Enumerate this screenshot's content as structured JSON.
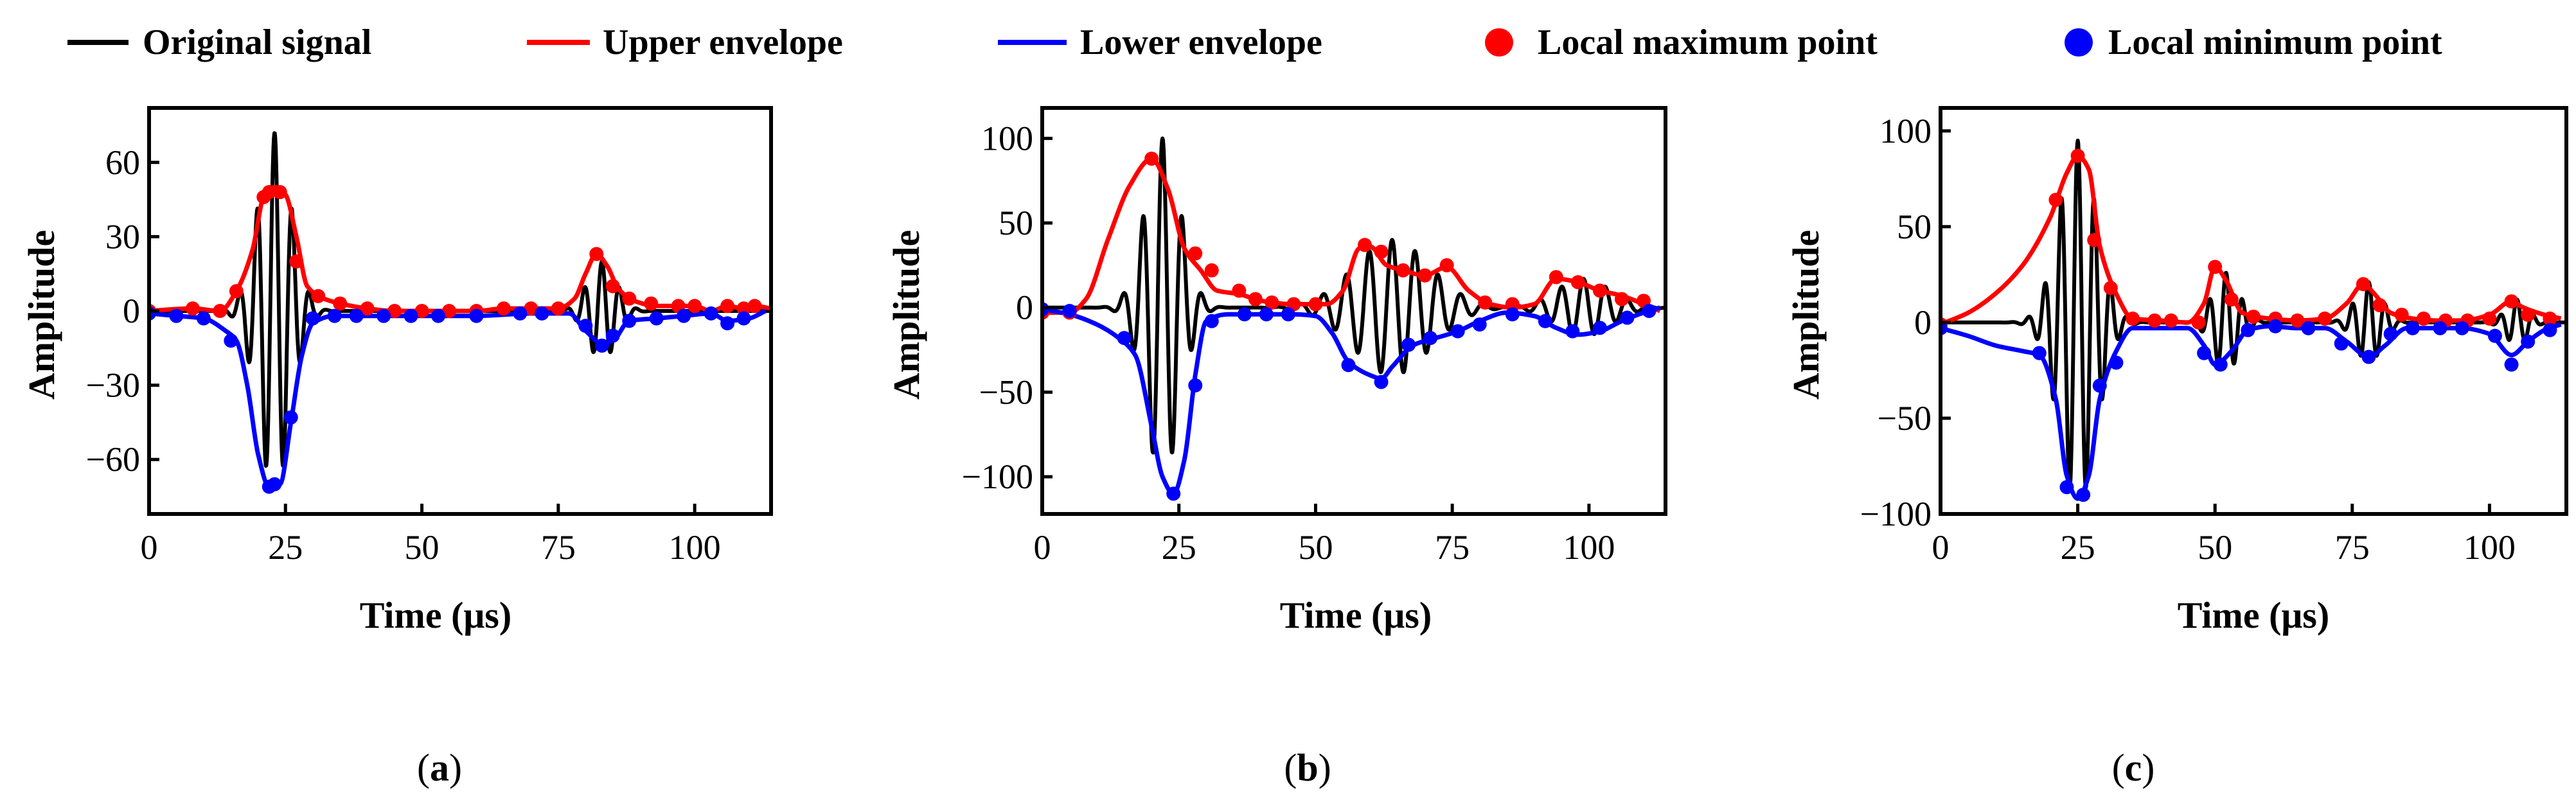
{
  "legend": {
    "original": "Original signal",
    "upper": "Upper envelope",
    "lower": "Lower envelope",
    "maxpt": "Local maximum point",
    "minpt": "Local minimum point"
  },
  "colors": {
    "signal": "#000000",
    "upper": "#ff0000",
    "lower": "#0000ff",
    "axis": "#000000"
  },
  "chart_data": [
    {
      "type": "line",
      "caption_open": "(",
      "caption_letter": "a",
      "caption_close": ")",
      "xlabel": "Time (μs)",
      "ylabel": "Amplitude",
      "xlim": [
        0,
        114
      ],
      "ylim": [
        -82,
        82
      ],
      "xticks": [
        0,
        25,
        50,
        75,
        100
      ],
      "yticks": [
        -60,
        -30,
        0,
        30,
        60
      ],
      "ytick_labels": [
        "−60",
        "−30",
        "0",
        "30",
        "60"
      ],
      "bursts": [
        {
          "center": 23,
          "amp": 72,
          "width": 3.0,
          "period": 3.2
        },
        {
          "center": 83,
          "amp": 20,
          "width": 2.6,
          "period": 3.2
        }
      ],
      "upper_envelope": [
        [
          0,
          0
        ],
        [
          8,
          1
        ],
        [
          13,
          0
        ],
        [
          16,
          8
        ],
        [
          19,
          25
        ],
        [
          21,
          46
        ],
        [
          23,
          50
        ],
        [
          25,
          47
        ],
        [
          27,
          30
        ],
        [
          29,
          10
        ],
        [
          32,
          5
        ],
        [
          35,
          3
        ],
        [
          40,
          1
        ],
        [
          45,
          0
        ],
        [
          50,
          0
        ],
        [
          55,
          0
        ],
        [
          60,
          0
        ],
        [
          65,
          1
        ],
        [
          70,
          1
        ],
        [
          75,
          1
        ],
        [
          78,
          5
        ],
        [
          80,
          15
        ],
        [
          82,
          23
        ],
        [
          84,
          18
        ],
        [
          86,
          9
        ],
        [
          89,
          4
        ],
        [
          93,
          2
        ],
        [
          97,
          2
        ],
        [
          100,
          2
        ],
        [
          103,
          0
        ],
        [
          106,
          2
        ],
        [
          109,
          1
        ],
        [
          111,
          2
        ],
        [
          114,
          1
        ]
      ],
      "lower_envelope": [
        [
          0,
          -1
        ],
        [
          5,
          -2
        ],
        [
          10,
          -3
        ],
        [
          14,
          -8
        ],
        [
          16,
          -12
        ],
        [
          18,
          -30
        ],
        [
          20,
          -58
        ],
        [
          22,
          -71
        ],
        [
          24,
          -70
        ],
        [
          26,
          -45
        ],
        [
          28,
          -18
        ],
        [
          30,
          -5
        ],
        [
          34,
          -2
        ],
        [
          40,
          -2
        ],
        [
          50,
          -2
        ],
        [
          60,
          -2
        ],
        [
          70,
          -1
        ],
        [
          77,
          -1
        ],
        [
          80,
          -8
        ],
        [
          83,
          -13
        ],
        [
          85,
          -12
        ],
        [
          88,
          -4
        ],
        [
          93,
          -3
        ],
        [
          98,
          -2
        ],
        [
          103,
          -1
        ],
        [
          106,
          -4
        ],
        [
          110,
          -3
        ],
        [
          113,
          0
        ]
      ],
      "max_points": [
        [
          0,
          0
        ],
        [
          8,
          1
        ],
        [
          13,
          0
        ],
        [
          16,
          8
        ],
        [
          21,
          46
        ],
        [
          22,
          48
        ],
        [
          24,
          48
        ],
        [
          27,
          20
        ],
        [
          31,
          6
        ],
        [
          35,
          3
        ],
        [
          40,
          1
        ],
        [
          45,
          0
        ],
        [
          50,
          0
        ],
        [
          55,
          0
        ],
        [
          60,
          0
        ],
        [
          65,
          1
        ],
        [
          70,
          1
        ],
        [
          75,
          1
        ],
        [
          82,
          23
        ],
        [
          85,
          10
        ],
        [
          88,
          5
        ],
        [
          92,
          3
        ],
        [
          97,
          2
        ],
        [
          100,
          2
        ],
        [
          106,
          2
        ],
        [
          109,
          1
        ],
        [
          111,
          2
        ]
      ],
      "min_points": [
        [
          0,
          -1
        ],
        [
          5,
          -2
        ],
        [
          10,
          -3
        ],
        [
          15,
          -12
        ],
        [
          22,
          -71
        ],
        [
          23,
          -70
        ],
        [
          26,
          -43
        ],
        [
          30,
          -3
        ],
        [
          34,
          -2
        ],
        [
          38,
          -2
        ],
        [
          43,
          -2
        ],
        [
          48,
          -2
        ],
        [
          53,
          -2
        ],
        [
          60,
          -2
        ],
        [
          68,
          -1
        ],
        [
          72,
          -1
        ],
        [
          80,
          -6
        ],
        [
          83,
          -14
        ],
        [
          85,
          -10
        ],
        [
          88,
          -4
        ],
        [
          93,
          -3
        ],
        [
          98,
          -2
        ],
        [
          103,
          -1
        ],
        [
          106,
          -5
        ],
        [
          109,
          -3
        ]
      ]
    },
    {
      "type": "line",
      "caption_open": "(",
      "caption_letter": "b",
      "caption_close": ")",
      "xlabel": "Time (μs)",
      "ylabel": "Amplitude",
      "xlim": [
        0,
        114
      ],
      "ylim": [
        -122,
        118
      ],
      "xticks": [
        0,
        25,
        50,
        75,
        100
      ],
      "yticks": [
        -100,
        -50,
        0,
        50,
        100
      ],
      "ytick_labels": [
        "−100",
        "−50",
        "0",
        "50",
        "100"
      ],
      "bursts": [
        {
          "center": 22,
          "amp": 100,
          "width": 3.2,
          "period": 3.6
        },
        {
          "center": 64,
          "amp": 40,
          "width": 7.0,
          "period": 4.2
        },
        {
          "center": 99,
          "amp": 17,
          "width": 5.0,
          "period": 4.0
        }
      ],
      "upper_envelope": [
        [
          0,
          -3
        ],
        [
          5,
          -3
        ],
        [
          8,
          5
        ],
        [
          12,
          40
        ],
        [
          16,
          72
        ],
        [
          20,
          88
        ],
        [
          23,
          70
        ],
        [
          26,
          35
        ],
        [
          29,
          22
        ],
        [
          32,
          10
        ],
        [
          36,
          8
        ],
        [
          40,
          4
        ],
        [
          46,
          2
        ],
        [
          52,
          2
        ],
        [
          55,
          10
        ],
        [
          58,
          35
        ],
        [
          60,
          36
        ],
        [
          63,
          25
        ],
        [
          66,
          22
        ],
        [
          70,
          19
        ],
        [
          74,
          24
        ],
        [
          78,
          10
        ],
        [
          82,
          2
        ],
        [
          86,
          0
        ],
        [
          90,
          2
        ],
        [
          94,
          17
        ],
        [
          98,
          15
        ],
        [
          102,
          10
        ],
        [
          106,
          7
        ],
        [
          110,
          2
        ],
        [
          113,
          -2
        ]
      ],
      "lower_envelope": [
        [
          0,
          -1
        ],
        [
          5,
          -4
        ],
        [
          10,
          -10
        ],
        [
          14,
          -18
        ],
        [
          17,
          -28
        ],
        [
          20,
          -70
        ],
        [
          22,
          -100
        ],
        [
          24,
          -110
        ],
        [
          26,
          -90
        ],
        [
          28,
          -40
        ],
        [
          30,
          -8
        ],
        [
          34,
          -4
        ],
        [
          40,
          -4
        ],
        [
          46,
          -4
        ],
        [
          50,
          -5
        ],
        [
          53,
          -15
        ],
        [
          56,
          -32
        ],
        [
          60,
          -40
        ],
        [
          62,
          -42
        ],
        [
          64,
          -35
        ],
        [
          68,
          -22
        ],
        [
          72,
          -18
        ],
        [
          76,
          -14
        ],
        [
          80,
          -8
        ],
        [
          85,
          -3
        ],
        [
          90,
          -5
        ],
        [
          94,
          -12
        ],
        [
          98,
          -16
        ],
        [
          102,
          -14
        ],
        [
          106,
          -8
        ],
        [
          110,
          -3
        ],
        [
          113,
          0
        ]
      ],
      "max_points": [
        [
          0,
          -3
        ],
        [
          5,
          -3
        ],
        [
          20,
          88
        ],
        [
          28,
          32
        ],
        [
          31,
          22
        ],
        [
          36,
          10
        ],
        [
          39,
          5
        ],
        [
          42,
          3
        ],
        [
          46,
          2
        ],
        [
          50,
          2
        ],
        [
          59,
          37
        ],
        [
          62,
          33
        ],
        [
          66,
          22
        ],
        [
          70,
          19
        ],
        [
          74,
          25
        ],
        [
          81,
          3
        ],
        [
          86,
          2
        ],
        [
          94,
          18
        ],
        [
          98,
          15
        ],
        [
          102,
          10
        ],
        [
          106,
          5
        ],
        [
          110,
          4
        ]
      ],
      "min_points": [
        [
          0,
          -1
        ],
        [
          5,
          -2
        ],
        [
          15,
          -18
        ],
        [
          24,
          -110
        ],
        [
          28,
          -46
        ],
        [
          31,
          -8
        ],
        [
          37,
          -4
        ],
        [
          41,
          -4
        ],
        [
          45,
          -4
        ],
        [
          56,
          -34
        ],
        [
          62,
          -44
        ],
        [
          67,
          -22
        ],
        [
          71,
          -18
        ],
        [
          76,
          -14
        ],
        [
          80,
          -10
        ],
        [
          86,
          -4
        ],
        [
          92,
          -8
        ],
        [
          97,
          -14
        ],
        [
          102,
          -12
        ],
        [
          107,
          -6
        ],
        [
          111,
          -2
        ]
      ]
    },
    {
      "type": "line",
      "caption_open": "(",
      "caption_letter": "c",
      "caption_close": ")",
      "xlabel": "Time (μs)",
      "ylabel": "Amplitude",
      "xlim": [
        0,
        114
      ],
      "ylim": [
        -100,
        112
      ],
      "xticks": [
        0,
        25,
        50,
        75,
        100
      ],
      "yticks": [
        -100,
        -50,
        0,
        50,
        100
      ],
      "ytick_labels": [
        "−100",
        "−50",
        "0",
        "50",
        "100"
      ],
      "bursts": [
        {
          "center": 25,
          "amp": 95,
          "width": 3.4,
          "period": 3.0
        },
        {
          "center": 52,
          "amp": 26,
          "width": 2.4,
          "period": 3.0
        },
        {
          "center": 78,
          "amp": 21,
          "width": 2.4,
          "period": 3.0
        },
        {
          "center": 105,
          "amp": 12,
          "width": 2.0,
          "period": 3.0
        }
      ],
      "upper_envelope": [
        [
          0,
          -1
        ],
        [
          5,
          5
        ],
        [
          10,
          15
        ],
        [
          15,
          30
        ],
        [
          20,
          55
        ],
        [
          23,
          78
        ],
        [
          25,
          87
        ],
        [
          27,
          80
        ],
        [
          29,
          40
        ],
        [
          32,
          15
        ],
        [
          35,
          2
        ],
        [
          40,
          1
        ],
        [
          45,
          0
        ],
        [
          48,
          10
        ],
        [
          50,
          29
        ],
        [
          52,
          22
        ],
        [
          55,
          5
        ],
        [
          60,
          2
        ],
        [
          65,
          1
        ],
        [
          70,
          2
        ],
        [
          74,
          10
        ],
        [
          77,
          20
        ],
        [
          79,
          15
        ],
        [
          82,
          5
        ],
        [
          86,
          2
        ],
        [
          90,
          1
        ],
        [
          95,
          1
        ],
        [
          100,
          4
        ],
        [
          104,
          11
        ],
        [
          106,
          8
        ],
        [
          110,
          4
        ],
        [
          113,
          2
        ]
      ],
      "lower_envelope": [
        [
          0,
          -3
        ],
        [
          5,
          -7
        ],
        [
          10,
          -12
        ],
        [
          15,
          -15
        ],
        [
          18,
          -17
        ],
        [
          21,
          -40
        ],
        [
          23,
          -80
        ],
        [
          25,
          -92
        ],
        [
          27,
          -80
        ],
        [
          29,
          -40
        ],
        [
          32,
          -15
        ],
        [
          35,
          -3
        ],
        [
          40,
          -3
        ],
        [
          45,
          -3
        ],
        [
          48,
          -12
        ],
        [
          50,
          -22
        ],
        [
          53,
          -15
        ],
        [
          56,
          -4
        ],
        [
          60,
          -2
        ],
        [
          65,
          -3
        ],
        [
          70,
          -3
        ],
        [
          74,
          -10
        ],
        [
          78,
          -18
        ],
        [
          81,
          -12
        ],
        [
          85,
          -3
        ],
        [
          90,
          -3
        ],
        [
          95,
          -3
        ],
        [
          100,
          -6
        ],
        [
          104,
          -17
        ],
        [
          107,
          -10
        ],
        [
          110,
          -4
        ],
        [
          113,
          -1
        ]
      ],
      "max_points": [
        [
          0,
          -1
        ],
        [
          21,
          64
        ],
        [
          25,
          87
        ],
        [
          28,
          43
        ],
        [
          31,
          18
        ],
        [
          35,
          2
        ],
        [
          39,
          1
        ],
        [
          42,
          1
        ],
        [
          47,
          0
        ],
        [
          50,
          29
        ],
        [
          53,
          12
        ],
        [
          57,
          3
        ],
        [
          61,
          2
        ],
        [
          65,
          1
        ],
        [
          70,
          2
        ],
        [
          77,
          20
        ],
        [
          80,
          9
        ],
        [
          84,
          4
        ],
        [
          88,
          2
        ],
        [
          92,
          1
        ],
        [
          96,
          1
        ],
        [
          100,
          2
        ],
        [
          104,
          11
        ],
        [
          107,
          4
        ],
        [
          111,
          2
        ]
      ],
      "min_points": [
        [
          0,
          -3
        ],
        [
          18,
          -16
        ],
        [
          23,
          -86
        ],
        [
          26,
          -90
        ],
        [
          29,
          -33
        ],
        [
          32,
          -21
        ],
        [
          48,
          -16
        ],
        [
          51,
          -22
        ],
        [
          56,
          -4
        ],
        [
          61,
          -2
        ],
        [
          67,
          -3
        ],
        [
          73,
          -11
        ],
        [
          78,
          -18
        ],
        [
          82,
          -6
        ],
        [
          86,
          -3
        ],
        [
          91,
          -3
        ],
        [
          95,
          -3
        ],
        [
          101,
          -7
        ],
        [
          104,
          -22
        ],
        [
          107,
          -10
        ],
        [
          111,
          -4
        ]
      ]
    }
  ]
}
